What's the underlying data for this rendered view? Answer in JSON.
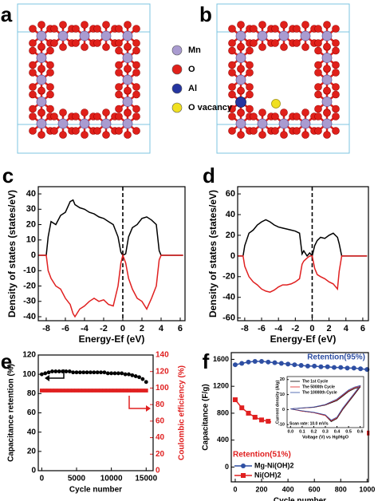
{
  "structures": {
    "panels": [
      "a",
      "b"
    ],
    "legend": [
      {
        "label": "Mn",
        "color": "#a99bd0"
      },
      {
        "label": "O",
        "color": "#e0201a"
      },
      {
        "label": "Al",
        "color": "#2535a0"
      },
      {
        "label": "O vacancy",
        "color": "#f0e020"
      }
    ]
  },
  "chart_data": [
    {
      "type": "line",
      "panel": "c",
      "xlabel": "Energy-Ef (eV)",
      "ylabel": "Density of states (states/eV)",
      "x": [
        -8.8,
        -8,
        -7.8,
        -7.5,
        -7,
        -6.5,
        -6,
        -5.5,
        -5.2,
        -5,
        -4.5,
        -4,
        -3.5,
        -3,
        -2.5,
        -2,
        -1.5,
        -1,
        -0.5,
        -0.2,
        0,
        0.3,
        0.6,
        1,
        1.5,
        2,
        2.5,
        3,
        3.5,
        3.8,
        4,
        5,
        6.3
      ],
      "series": [
        {
          "color": "#000000",
          "values": [
            0,
            0,
            12,
            22,
            20,
            26,
            28,
            35,
            36,
            33,
            31,
            30,
            28,
            27,
            25,
            24,
            22,
            20,
            12,
            2,
            0,
            1,
            12,
            18,
            20,
            24,
            25,
            23,
            20,
            3,
            0,
            0,
            0
          ]
        },
        {
          "color": "#e02020",
          "values": [
            0,
            0,
            -10,
            -15,
            -20,
            -22,
            -28,
            -32,
            -38,
            -40,
            -35,
            -33,
            -30,
            -28,
            -30,
            -29,
            -32,
            -33,
            -20,
            -5,
            0,
            -5,
            -15,
            -22,
            -28,
            -30,
            -35,
            -28,
            -20,
            -3,
            0,
            0,
            0
          ]
        }
      ],
      "vline": 0,
      "xlim": [
        -8.83,
        6.5
      ],
      "xticks": [
        -8,
        -6,
        -4,
        -2,
        0,
        2,
        4,
        6
      ],
      "ylim": [
        -42.6,
        44.7
      ],
      "yticks": [
        -40,
        -30,
        -20,
        -10,
        0,
        10,
        20,
        30,
        40
      ]
    },
    {
      "type": "line",
      "panel": "d",
      "xlabel": "Energy-Ef (eV)",
      "ylabel": "Density of states (states/eV)",
      "x": [
        -8.8,
        -8.2,
        -8,
        -7.5,
        -7,
        -6.5,
        -6,
        -5.5,
        -5,
        -4.5,
        -4,
        -3.5,
        -3,
        -2.5,
        -2,
        -1.5,
        -1.2,
        -1,
        -0.6,
        -0.3,
        0,
        0.3,
        0.6,
        1,
        1.5,
        2,
        2.5,
        3,
        3.2,
        3.5,
        4,
        5,
        6.5
      ],
      "series": [
        {
          "color": "#000000",
          "values": [
            0,
            0,
            10,
            22,
            25,
            30,
            33,
            35,
            33,
            30,
            28,
            27,
            26,
            25,
            24,
            22,
            2,
            5,
            0,
            3,
            0,
            10,
            15,
            18,
            17,
            20,
            22,
            18,
            12,
            0,
            0,
            0,
            0
          ]
        },
        {
          "color": "#e02020",
          "values": [
            0,
            0,
            -10,
            -20,
            -25,
            -28,
            -32,
            -34,
            -35,
            -33,
            -30,
            -28,
            -28,
            -27,
            -25,
            -22,
            -8,
            -5,
            -2,
            0,
            0,
            -12,
            -18,
            -20,
            -22,
            -25,
            -27,
            -32,
            -15,
            0,
            0,
            0,
            0
          ]
        }
      ],
      "vline": 0,
      "xlim": [
        -8.84,
        6.67
      ],
      "xticks": [
        -8,
        -6,
        -4,
        -2,
        0,
        2,
        4,
        6
      ],
      "ylim": [
        -62.6,
        67
      ],
      "yticks": [
        -60,
        -40,
        -20,
        0,
        20,
        40,
        60
      ]
    },
    {
      "type": "line",
      "panel": "e",
      "xlabel": "Cycle number",
      "ylabel": "Capacitance retention (%)",
      "y2label": "Coulombic efficiency (%)",
      "y2color": "#e02020",
      "x": [
        0,
        500,
        1000,
        1500,
        2000,
        2500,
        3000,
        3500,
        4000,
        4500,
        5000,
        5500,
        6000,
        6500,
        7000,
        7500,
        8000,
        8500,
        9000,
        9500,
        10000,
        10500,
        11000,
        11500,
        12000,
        12500,
        13000,
        13500,
        14000,
        14500,
        15000
      ],
      "series": [
        {
          "color": "#000000",
          "marker": "circle",
          "line": false,
          "values": [
            100,
            101,
            102,
            103,
            103,
            103,
            103,
            103,
            103,
            102,
            102,
            102,
            102,
            102,
            102,
            102,
            102,
            102,
            102,
            101,
            101,
            101,
            101,
            101,
            100,
            100,
            99,
            98,
            97,
            95,
            92
          ]
        },
        {
          "color": "#e02020",
          "marker": "square",
          "line": true,
          "axis": "y2",
          "values": [
            97,
            97,
            97,
            97,
            97,
            97,
            97,
            97,
            97,
            97,
            97,
            97,
            97,
            97,
            97,
            97,
            97,
            97,
            97,
            97,
            97,
            97,
            97,
            97,
            97,
            97,
            97,
            97,
            97,
            97,
            97
          ]
        }
      ],
      "xlim": [
        -500,
        16000
      ],
      "xticks": [
        0,
        5000,
        10000,
        15000
      ],
      "ylim": [
        0,
        120
      ],
      "yticks": [
        0,
        20,
        40,
        60,
        80,
        100,
        120
      ],
      "y2lim": [
        0,
        140
      ],
      "y2ticks": [
        0,
        20,
        40,
        60,
        80,
        100,
        120,
        140
      ]
    },
    {
      "type": "line",
      "panel": "f",
      "xlabel": "Cycle number",
      "ylabel": "Capacitance (F/g)",
      "legend": "lower left",
      "x": [
        0,
        50,
        100,
        150,
        200,
        250,
        300,
        350,
        400,
        450,
        500,
        550,
        600,
        650,
        700,
        750,
        800,
        850,
        900,
        950,
        1000
      ],
      "series": [
        {
          "name": "Mg-Ni(OH)2",
          "color": "#2e4fa3",
          "marker": "circle",
          "line": true,
          "values": [
            1520,
            1540,
            1560,
            1570,
            1570,
            1560,
            1550,
            1540,
            1530,
            1520,
            1510,
            1500,
            1500,
            1490,
            1490,
            1480,
            1480,
            1470,
            1470,
            1460,
            1450
          ]
        },
        {
          "name": "Ni(OH)2",
          "color": "#e02020",
          "marker": "square",
          "line": true,
          "values": [
            1000,
            880,
            800,
            740,
            700,
            680,
            660,
            640,
            620,
            600,
            590,
            580,
            570,
            560,
            550,
            540,
            530,
            520,
            515,
            510,
            505
          ]
        }
      ],
      "annotations": [
        {
          "text": "Retention(95%)",
          "color": "#2e4fa3"
        },
        {
          "text": "Retention(51%)",
          "color": "#e02020"
        }
      ],
      "xlim": [
        -30,
        1010
      ],
      "xticks": [
        0,
        200,
        400,
        600,
        800,
        1000
      ],
      "ylim": [
        -220,
        1700
      ],
      "yticks": [
        0,
        400,
        800,
        1200,
        1600
      ]
    },
    {
      "type": "line",
      "xlabel": "Voltage (V) vs Hg/HgO",
      "ylabel": "Current density (A/g)",
      "legend": "upper left",
      "series": [
        {
          "name": "The 1st Cycle",
          "color": "#000000",
          "x": [
            0,
            0.1,
            0.2,
            0.3,
            0.4,
            0.45,
            0.5,
            0.55,
            0.6,
            0.55,
            0.5,
            0.45,
            0.4,
            0.35,
            0.3,
            0.2,
            0.1,
            0
          ],
          "values": [
            0.5,
            1,
            1.5,
            3,
            6,
            9,
            12,
            14,
            15,
            10,
            5,
            0,
            -6,
            -8,
            -4,
            -2,
            -1,
            0.5
          ]
        },
        {
          "name": "The 5000th Cycle",
          "color": "#e02020",
          "x": [
            0,
            0.1,
            0.2,
            0.3,
            0.4,
            0.45,
            0.5,
            0.55,
            0.6,
            0.55,
            0.5,
            0.45,
            0.4,
            0.35,
            0.3,
            0.2,
            0.1,
            0
          ],
          "values": [
            0.5,
            1,
            1.6,
            3.2,
            6.5,
            9.5,
            12.5,
            14.5,
            15.5,
            10.5,
            5.5,
            0.5,
            -5.5,
            -7.5,
            -4,
            -2,
            -1,
            0.5
          ]
        },
        {
          "name": "The 10000th Cycle",
          "color": "#2e4fa3",
          "x": [
            0,
            0.1,
            0.2,
            0.3,
            0.4,
            0.45,
            0.5,
            0.55,
            0.6,
            0.55,
            0.5,
            0.45,
            0.4,
            0.35,
            0.3,
            0.2,
            0.1,
            0
          ],
          "values": [
            0.5,
            1.1,
            1.7,
            3.4,
            7,
            10,
            13,
            15,
            16,
            11,
            6,
            1,
            -5,
            -7,
            -3.5,
            -1.8,
            -0.8,
            0.5
          ]
        }
      ],
      "annotations": [
        {
          "text": "Scan rate: 10.0 mV/s",
          "color": "#000000"
        }
      ],
      "xlim": [
        -0.03,
        0.63
      ],
      "xticks": [
        {
          "value": 0,
          "label": "0.0"
        },
        0.1,
        0.2,
        0.3,
        0.4,
        0.5,
        0.6
      ],
      "ylim": [
        -12,
        22
      ],
      "yticks": [
        -10,
        0,
        10,
        20
      ]
    }
  ]
}
